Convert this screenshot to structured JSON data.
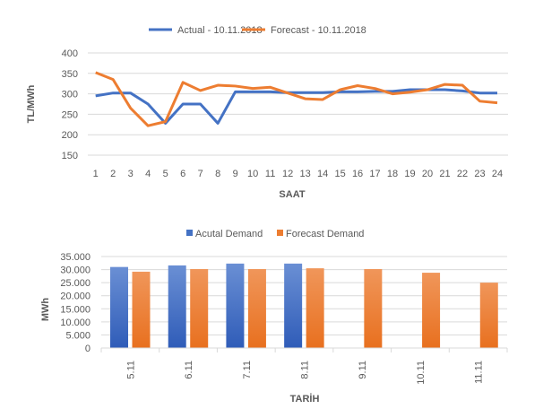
{
  "chart_data": [
    {
      "type": "line",
      "title": "",
      "xlabel": "SAAT",
      "ylabel": "TL/MWh",
      "ylim": [
        150,
        400
      ],
      "yticks": [
        150,
        200,
        250,
        300,
        350,
        400
      ],
      "grid": true,
      "legend": "top",
      "x": [
        1,
        2,
        3,
        4,
        5,
        6,
        7,
        8,
        9,
        10,
        11,
        12,
        13,
        14,
        15,
        16,
        17,
        18,
        19,
        20,
        21,
        22,
        23,
        24
      ],
      "series": [
        {
          "name": "Actual - 10.11.2018",
          "color": "#4472C4",
          "values": [
            295,
            302,
            302,
            275,
            228,
            275,
            275,
            228,
            305,
            305,
            305,
            303,
            303,
            303,
            305,
            305,
            306,
            306,
            310,
            310,
            310,
            307,
            302,
            302
          ]
        },
        {
          "name": "Forecast - 10.11.2018",
          "color": "#ED7D31",
          "values": [
            352,
            335,
            265,
            222,
            232,
            328,
            308,
            321,
            319,
            313,
            316,
            302,
            288,
            286,
            310,
            320,
            313,
            300,
            304,
            310,
            323,
            321,
            282,
            278
          ]
        }
      ]
    },
    {
      "type": "bar",
      "title": "",
      "xlabel": "TARİH",
      "ylabel": "MWh",
      "ylim": [
        0,
        35000
      ],
      "yticks": [
        "0",
        "5.000",
        "10.000",
        "15.000",
        "20.000",
        "25.000",
        "30.000",
        "35.000"
      ],
      "grid": true,
      "legend": "top",
      "categories": [
        "5.11",
        "6.11",
        "7.11",
        "8.11",
        "9.11",
        "10.11",
        "11.11"
      ],
      "series": [
        {
          "name": "Acutal Demand",
          "color": "#4472C4",
          "values": [
            31000,
            31600,
            32300,
            32300,
            null,
            null,
            null
          ]
        },
        {
          "name": "Forecast Demand",
          "color": "#ED7D31",
          "values": [
            29200,
            30200,
            30200,
            30500,
            30200,
            28800,
            25000
          ]
        }
      ]
    }
  ]
}
